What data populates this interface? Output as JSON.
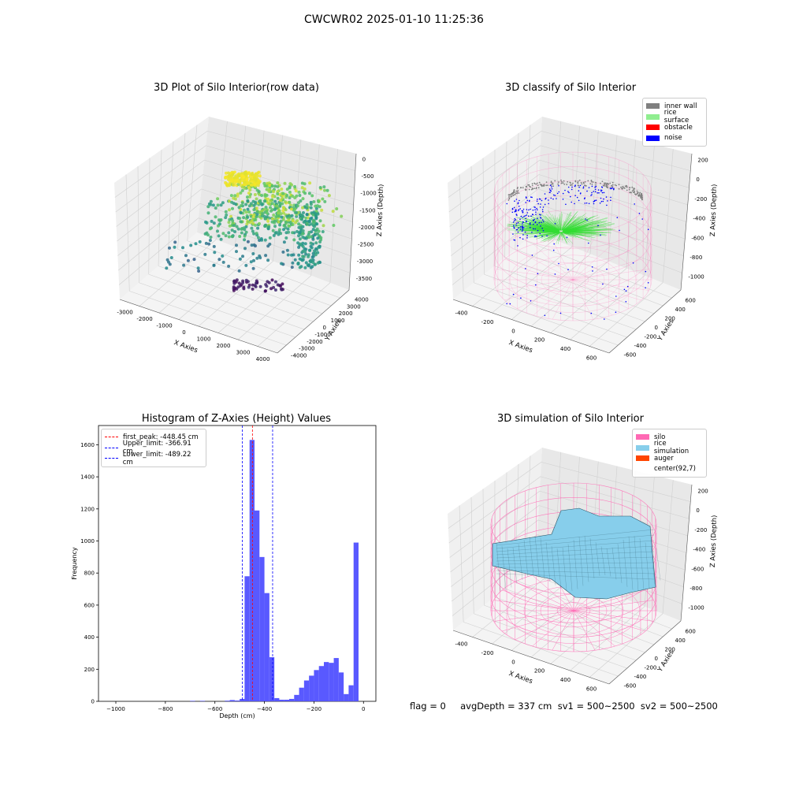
{
  "suptitle": "CWCWR02 2025-01-10 11:25:36",
  "footer": "flag = 0     avgDepth = 337 cm  sv1 = 500~2500  sv2 = 500~2500",
  "colors": {
    "silo": "#ff69b4",
    "rice_simulation": "#87ceeb",
    "auger": "#ff4500",
    "inner_wall": "#808080",
    "rice_surface": "#90ee90",
    "obstacle": "#ff0000",
    "noise": "#0000ff",
    "hist_bar": "#5050ff"
  },
  "panels": {
    "raw": {
      "title": "3D Plot of Silo Interior(row data)",
      "xlabel": "X Axies",
      "ylabel": "Y Axies",
      "zlabel": "Z Axies (Depth)",
      "xticks": [
        "-3000",
        "-2000",
        "-1000",
        "0",
        "1000",
        "2000",
        "3000",
        "4000"
      ],
      "yticks": [
        "-4000",
        "-3000",
        "-2000",
        "-1000",
        "0",
        "1000",
        "2000",
        "3000",
        "4000"
      ],
      "zticks": [
        "0",
        "-500",
        "-1000",
        "-1500",
        "-2000",
        "-2500",
        "-3000",
        "-3500"
      ]
    },
    "classify": {
      "title": "3D classify of Silo Interior",
      "xlabel": "X Axies",
      "ylabel": "Y Axies",
      "zlabel": "Z Axies (Depth)",
      "xticks": [
        "-400",
        "-200",
        "0",
        "200",
        "400",
        "600"
      ],
      "yticks": [
        "-600",
        "-400",
        "-200",
        "0",
        "200",
        "400",
        "600"
      ],
      "zticks": [
        "200",
        "0",
        "-200",
        "-400",
        "-600",
        "-800",
        "-1000"
      ],
      "legend": [
        "inner wall",
        "rice surface",
        "obstacle",
        "noise"
      ]
    },
    "simulation": {
      "title": "3D simulation of Silo Interior",
      "xlabel": "X Axies",
      "ylabel": "Y Axies",
      "zlabel": "Z Axies (Depth)",
      "xticks": [
        "-400",
        "-200",
        "0",
        "200",
        "400",
        "600"
      ],
      "yticks": [
        "-600",
        "-400",
        "-200",
        "0",
        "200",
        "400",
        "600"
      ],
      "zticks": [
        "200",
        "0",
        "-200",
        "-400",
        "-600",
        "-800",
        "-1000"
      ],
      "legend": [
        "silo",
        "rice simulation",
        "auger",
        "center(92,7)"
      ]
    }
  },
  "chart_data": [
    {
      "type": "histogram",
      "title": "Histogram of Z-Axies (Height) Values",
      "xlabel": "Depth (cm)",
      "ylabel": "Frequency",
      "xlim": [
        -1070,
        50
      ],
      "ylim": [
        0,
        1720
      ],
      "xticks": [
        -1000,
        -800,
        -600,
        -400,
        -200,
        0
      ],
      "yticks": [
        0,
        200,
        400,
        600,
        800,
        1000,
        1200,
        1400,
        1600
      ],
      "bin_width": 20,
      "bins": [
        {
          "x": -700,
          "count": 3
        },
        {
          "x": -660,
          "count": 3
        },
        {
          "x": -560,
          "count": 4
        },
        {
          "x": -540,
          "count": 8
        },
        {
          "x": -520,
          "count": 5
        },
        {
          "x": -500,
          "count": 15
        },
        {
          "x": -480,
          "count": 780
        },
        {
          "x": -460,
          "count": 1630
        },
        {
          "x": -440,
          "count": 1190
        },
        {
          "x": -420,
          "count": 900
        },
        {
          "x": -400,
          "count": 675
        },
        {
          "x": -380,
          "count": 275
        },
        {
          "x": -360,
          "count": 20
        },
        {
          "x": -340,
          "count": 10
        },
        {
          "x": -320,
          "count": 10
        },
        {
          "x": -300,
          "count": 15
        },
        {
          "x": -280,
          "count": 40
        },
        {
          "x": -260,
          "count": 85
        },
        {
          "x": -240,
          "count": 130
        },
        {
          "x": -220,
          "count": 160
        },
        {
          "x": -200,
          "count": 195
        },
        {
          "x": -180,
          "count": 220
        },
        {
          "x": -160,
          "count": 245
        },
        {
          "x": -140,
          "count": 240
        },
        {
          "x": -120,
          "count": 270
        },
        {
          "x": -100,
          "count": 180
        },
        {
          "x": -80,
          "count": 45
        },
        {
          "x": -60,
          "count": 100
        },
        {
          "x": -40,
          "count": 990
        }
      ],
      "lines": [
        {
          "label": "first_peak: -448.45 cm",
          "value": -448.45,
          "color": "#ff0000"
        },
        {
          "label": "Upper_limit: -366.91 cm",
          "value": -366.91,
          "color": "#0000ff"
        },
        {
          "label": "Lower_limit: -489.22 cm",
          "value": -489.22,
          "color": "#0000ff"
        }
      ]
    }
  ]
}
